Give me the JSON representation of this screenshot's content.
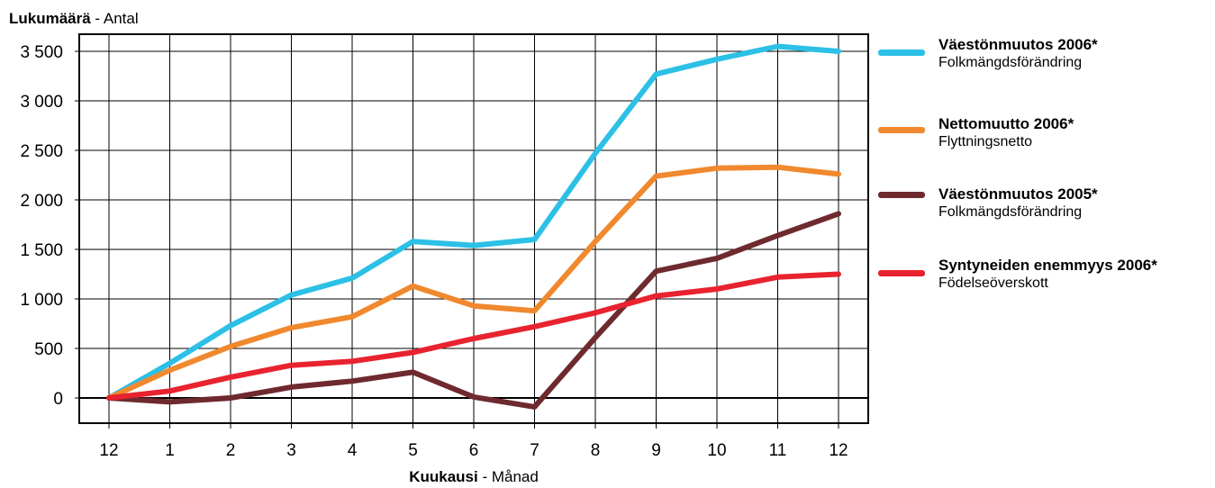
{
  "chart_data": {
    "type": "line",
    "title": "",
    "ylabel": {
      "bold": "Lukumäärä",
      "rest": " - Antal"
    },
    "xlabel": {
      "bold": "Kuukausi",
      "rest": " - Månad"
    },
    "x": [
      "12",
      "1",
      "2",
      "3",
      "4",
      "5",
      "6",
      "7",
      "8",
      "9",
      "10",
      "11",
      "12"
    ],
    "ylim": [
      -270,
      3500
    ],
    "yticks": [
      {
        "value": 0,
        "label": "0"
      },
      {
        "value": 500,
        "label": "500"
      },
      {
        "value": 1000,
        "label": "1 000"
      },
      {
        "value": 1500,
        "label": "1 500"
      },
      {
        "value": 2000,
        "label": "2 000"
      },
      {
        "value": 2500,
        "label": "2 500"
      },
      {
        "value": 3000,
        "label": "3 000"
      },
      {
        "value": 3500,
        "label": "3 500"
      }
    ],
    "grid": true,
    "legend_position": "right",
    "series": [
      {
        "name": "Väestönmuutos 2006*",
        "subname": "Folkmängdsförändring",
        "color": "#2cc0e6",
        "values": [
          0,
          350,
          730,
          1040,
          1210,
          1580,
          1540,
          1600,
          2470,
          3270,
          3420,
          3550,
          3500
        ]
      },
      {
        "name": "Nettomuutto 2006*",
        "subname": "Flyttningsnetto",
        "color": "#f0892e",
        "values": [
          0,
          280,
          520,
          710,
          820,
          1130,
          930,
          880,
          1580,
          2240,
          2320,
          2330,
          2260
        ]
      },
      {
        "name": "Väestönmuutos 2005*",
        "subname": "Folkmängdsförändring",
        "color": "#6e2a2e",
        "values": [
          0,
          -40,
          0,
          110,
          170,
          260,
          10,
          -90,
          610,
          1280,
          1410,
          1640,
          1860
        ]
      },
      {
        "name": "Syntyneiden enemmyys 2006*",
        "subname": "Födelseöverskott",
        "color": "#e8232f",
        "values": [
          0,
          70,
          210,
          330,
          370,
          460,
          600,
          720,
          860,
          1030,
          1100,
          1220,
          1250
        ]
      }
    ]
  }
}
